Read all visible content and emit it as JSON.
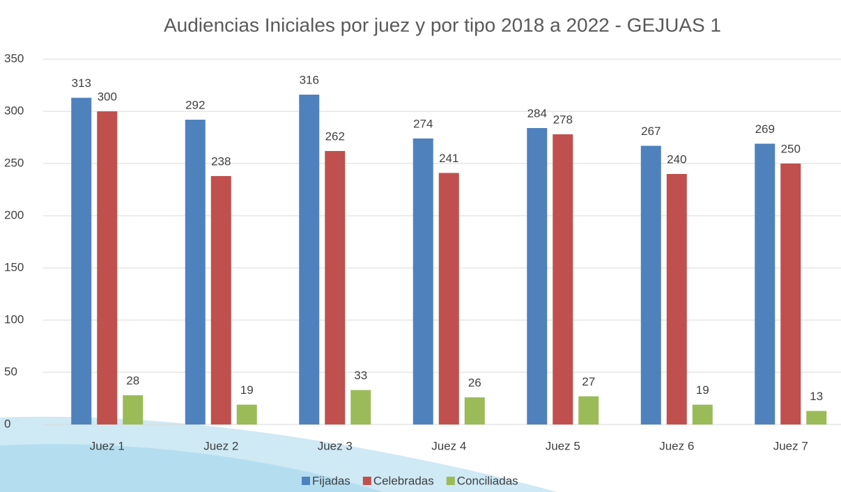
{
  "chart_data": {
    "type": "bar",
    "title": "Audiencias Iniciales por juez y por tipo 2018 a 2022 - GEJUAS 1",
    "categories": [
      "Juez 1",
      "Juez 2",
      "Juez 3",
      "Juez 4",
      "Juez 5",
      "Juez 6",
      "Juez 7"
    ],
    "series": [
      {
        "name": "Fijadas",
        "color": "#4f81bd",
        "values": [
          313,
          292,
          316,
          274,
          284,
          267,
          269
        ]
      },
      {
        "name": "Celebradas",
        "color": "#c0504d",
        "values": [
          300,
          238,
          262,
          241,
          278,
          240,
          250
        ]
      },
      {
        "name": "Conciliadas",
        "color": "#9bbb59",
        "values": [
          28,
          19,
          33,
          26,
          27,
          19,
          13
        ]
      }
    ],
    "ylim": [
      0,
      350
    ],
    "yticks": [
      0,
      50,
      100,
      150,
      200,
      250,
      300,
      350
    ],
    "grid": true,
    "legend": "bottom"
  }
}
